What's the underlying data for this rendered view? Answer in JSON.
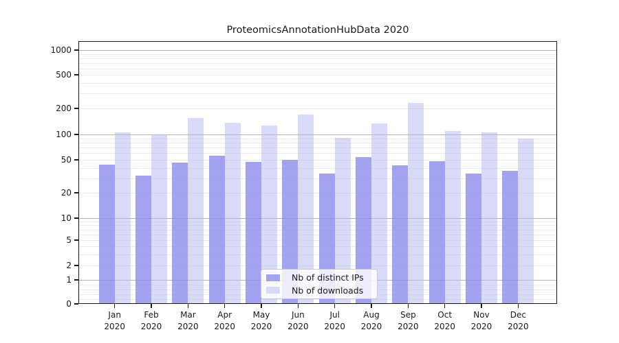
{
  "figure": {
    "title": "ProteomicsAnnotationHubData 2020"
  },
  "legend": {
    "items": [
      {
        "label": "Nb of distinct IPs",
        "color": "#a2a2f0"
      },
      {
        "label": "Nb of downloads",
        "color": "#d9d9f8"
      }
    ]
  },
  "chart_data": {
    "type": "bar",
    "title": "ProteomicsAnnotationHubData 2020",
    "categories": [
      "Jan 2020",
      "Feb 2020",
      "Mar 2020",
      "Apr 2020",
      "May 2020",
      "Jun 2020",
      "Jul 2020",
      "Aug 2020",
      "Sep 2020",
      "Oct 2020",
      "Nov 2020",
      "Dec 2020"
    ],
    "x_tick_months": [
      "Jan",
      "Feb",
      "Mar",
      "Apr",
      "May",
      "Jun",
      "Jul",
      "Aug",
      "Sep",
      "Oct",
      "Nov",
      "Dec"
    ],
    "x_tick_year": "2020",
    "series": [
      {
        "name": "Nb of distinct IPs",
        "key": "distinct-ips",
        "color": "#a2a2f0",
        "fill": "rgba(139,139,236,0.8)",
        "values": [
          44,
          32,
          46,
          56,
          47,
          50,
          34,
          54,
          43,
          48,
          34,
          37
        ]
      },
      {
        "name": "Nb of downloads",
        "key": "downloads",
        "color": "#d9d9f8",
        "fill": "rgba(179,179,241,0.5)",
        "values": [
          106,
          100,
          154,
          137,
          127,
          171,
          92,
          133,
          232,
          110,
          106,
          90
        ]
      }
    ],
    "y_scale": "symlog",
    "y_tick_labels": [
      "0",
      "1",
      "2",
      "5",
      "10",
      "20",
      "50",
      "100",
      "200",
      "500",
      "1000"
    ],
    "y_tick_values": [
      0,
      1,
      2,
      5,
      10,
      20,
      50,
      100,
      200,
      500,
      1000
    ],
    "ylim": [
      0,
      1150
    ],
    "grid": true,
    "legend_position": "lower center"
  }
}
